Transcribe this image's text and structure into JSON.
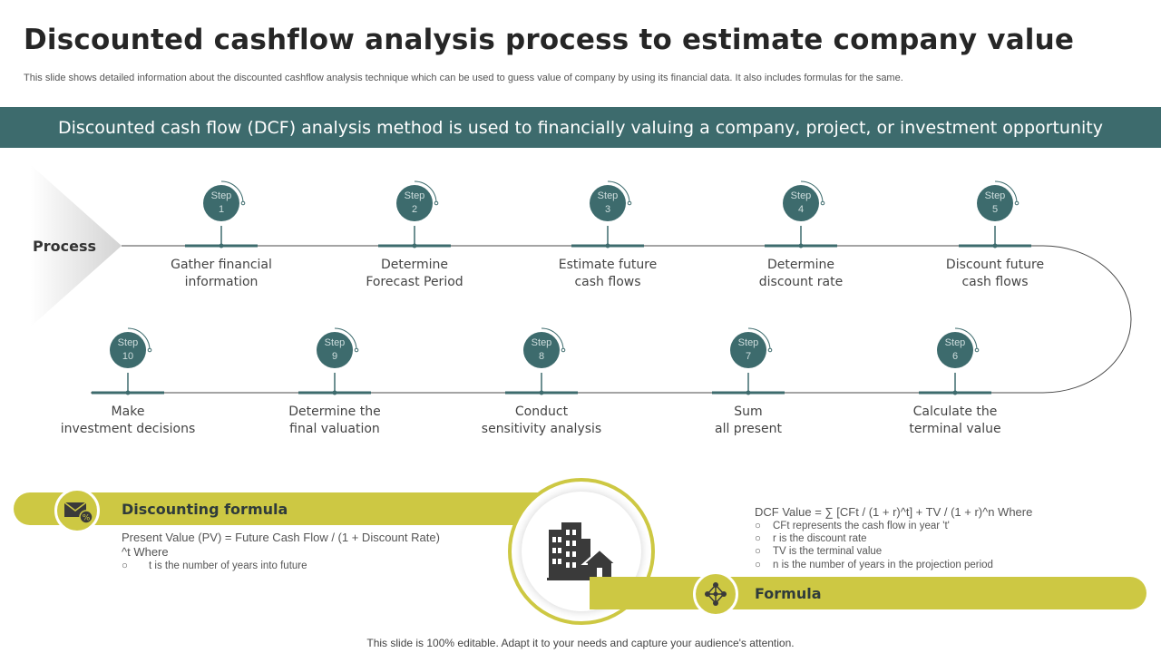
{
  "title": "Discounted cashflow analysis process to estimate company value",
  "subtitle": "This slide shows detailed information about the discounted cashflow analysis technique which can be used to guess value of company by using its financial data. It also includes formulas for the same.",
  "banner": "Discounted cash flow (DCF) analysis method is used to financially valuing a company, project, or investment opportunity",
  "process_label": "Process",
  "step_word": "Step",
  "steps": [
    {
      "num": "1",
      "line1": "Gather financial",
      "line2": "information"
    },
    {
      "num": "2",
      "line1": "Determine",
      "line2": "Forecast Period"
    },
    {
      "num": "3",
      "line1": "Estimate future",
      "line2": "cash flows"
    },
    {
      "num": "4",
      "line1": "Determine",
      "line2": "discount rate"
    },
    {
      "num": "5",
      "line1": "Discount future",
      "line2": "cash flows"
    },
    {
      "num": "6",
      "line1": "Calculate the",
      "line2": "terminal value"
    },
    {
      "num": "7",
      "line1": "Sum",
      "line2": "all present"
    },
    {
      "num": "8",
      "line1": "Conduct",
      "line2": "sensitivity analysis"
    },
    {
      "num": "9",
      "line1": "Determine the",
      "line2": "final valuation"
    },
    {
      "num": "10",
      "line1": "Make",
      "line2": "investment decisions"
    }
  ],
  "discounting": {
    "heading": "Discounting formula",
    "line1": "Present Value (PV) = Future Cash Flow / (1 + Discount Rate)",
    "line2": "^t Where",
    "bullet_marker": "○",
    "bullet1": "t is the number of years into future"
  },
  "formula": {
    "heading": "Formula",
    "main": "DCF Value = ∑ [CFt / (1 + r)^t]  + TV / (1 + r)^n  Where",
    "bullets": [
      "CFt represents the cash flow in year 't'",
      "r is the discount rate",
      "TV is the terminal value",
      "n is the number of years in the projection period"
    ]
  },
  "footer": "This slide is 100% editable. Adapt it to your needs and capture your audience's attention.",
  "icons": {
    "discounting": "money-envelope-icon",
    "center": "buildings-icon",
    "formula": "network-icon"
  },
  "colors": {
    "teal": "#3d6b6d",
    "olive": "#cdc843",
    "dark_text": "#262626"
  }
}
